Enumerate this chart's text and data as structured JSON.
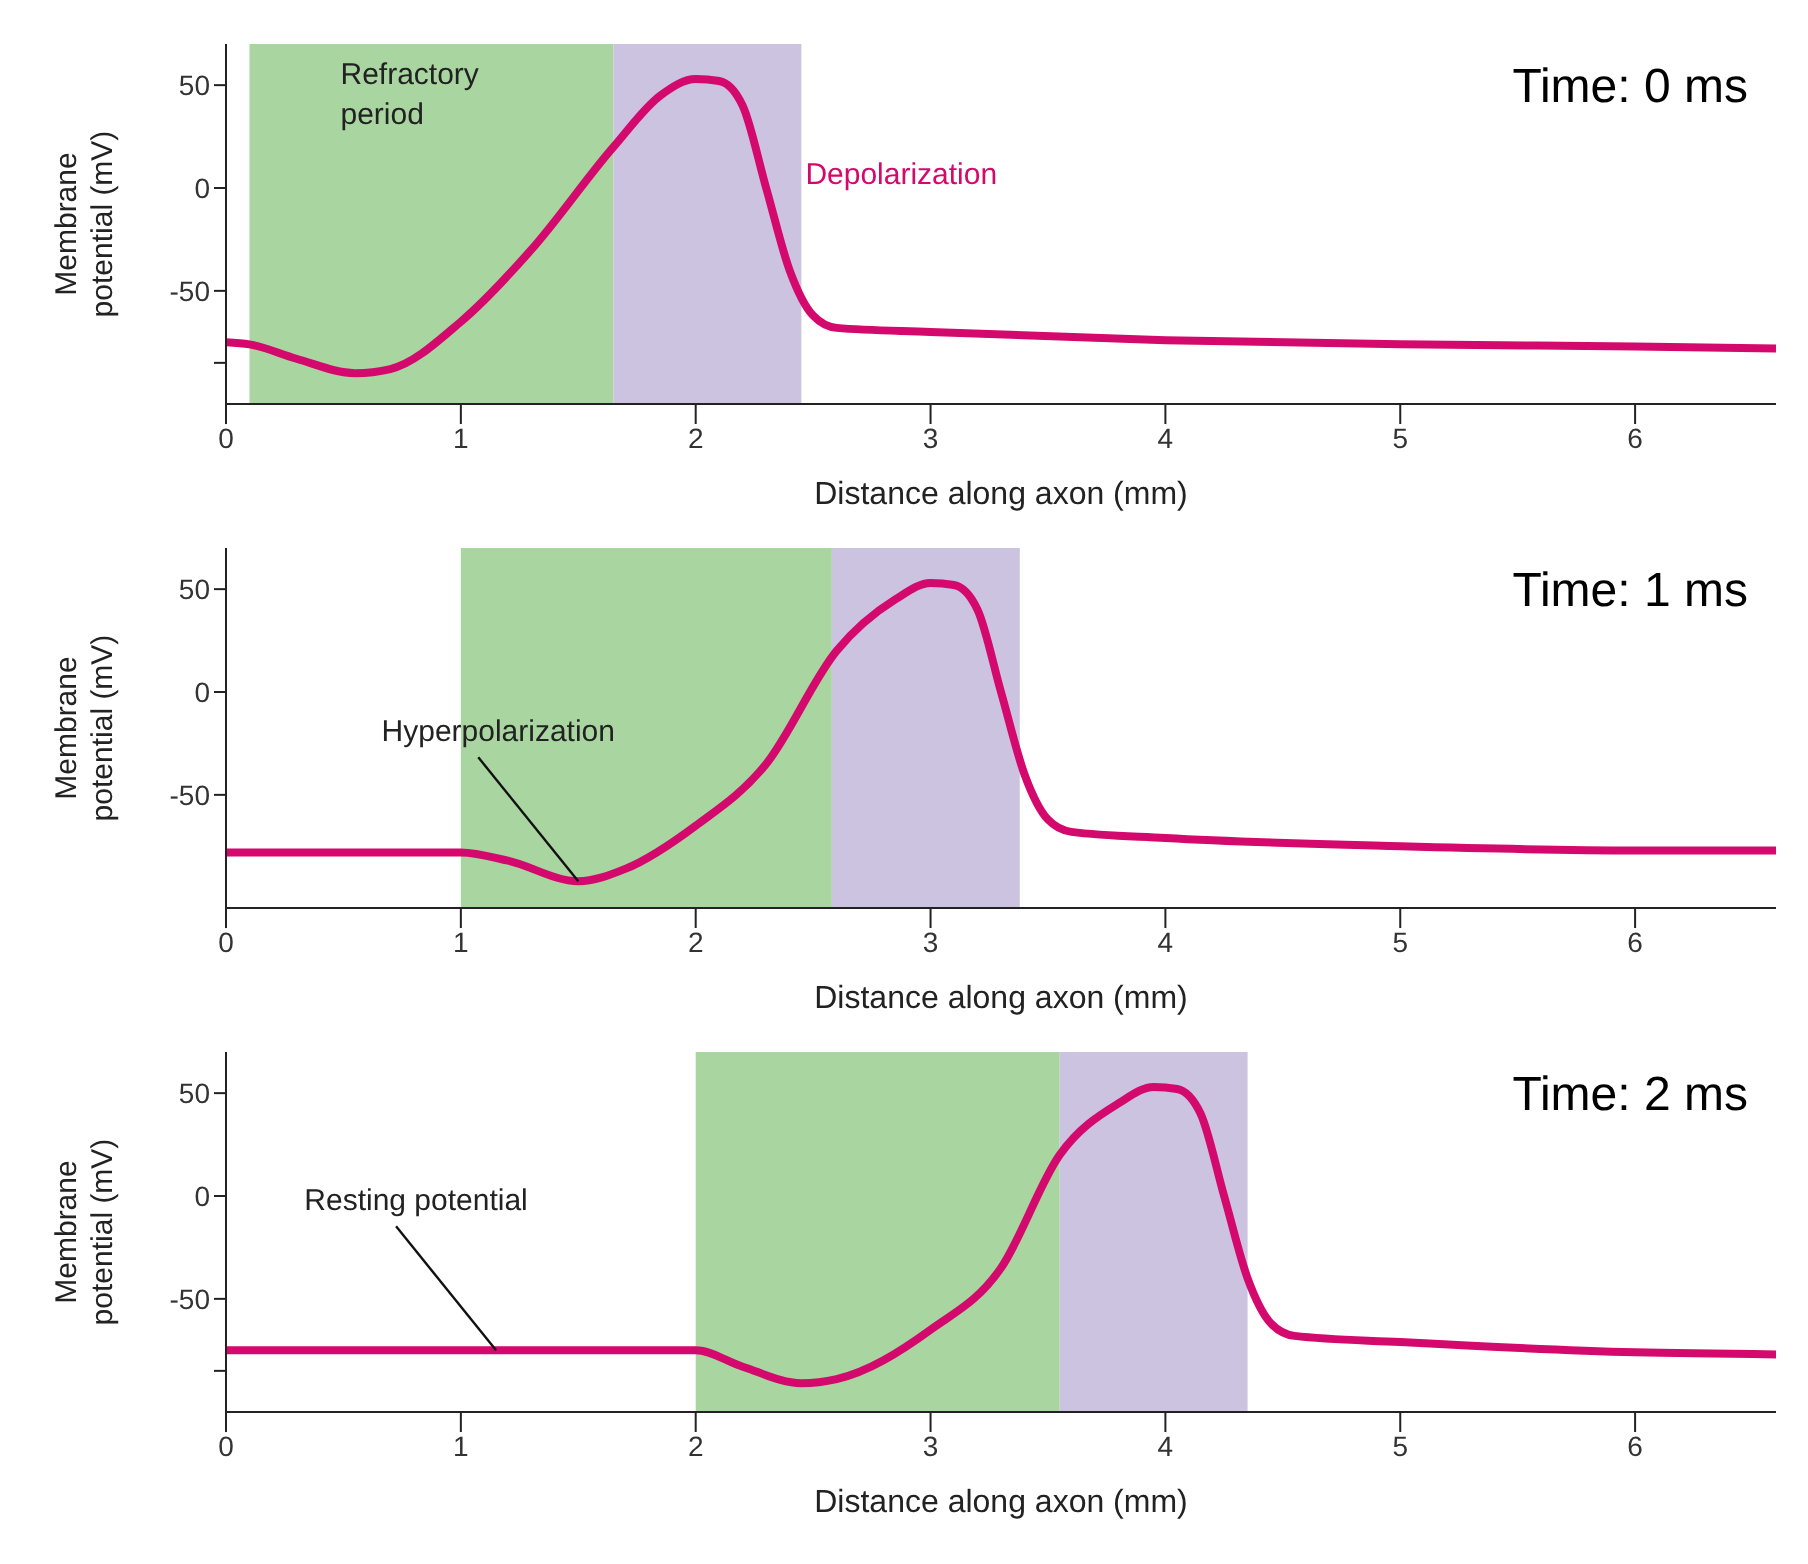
{
  "chart_data": [
    {
      "type": "line",
      "xlabel": "Distance along axon (mm)",
      "ylabel": "Membrane potential (mV)",
      "xlim": [
        0,
        6.6
      ],
      "xticks": [
        0,
        1,
        2,
        3,
        4,
        5,
        6
      ],
      "ylim": [
        -105,
        70
      ],
      "yticks": [
        {
          "value": -85,
          "label": null
        },
        -50,
        0,
        50
      ],
      "x": [
        0,
        0.1,
        0.3,
        0.55,
        0.7,
        1.0,
        1.3,
        1.65,
        1.85,
        2.0,
        2.1,
        2.2,
        2.3,
        2.4,
        2.5,
        2.6,
        3,
        4,
        5,
        6,
        6.6
      ],
      "series": [
        {
          "color": "#d4096e",
          "values": [
            -75,
            -76,
            -83,
            -90,
            -88,
            -65,
            -30,
            20,
            45,
            53,
            52,
            40,
            0,
            -40,
            -62,
            -68,
            -70,
            -74,
            -76,
            -77,
            -78
          ]
        }
      ],
      "bands": [
        {
          "axis": "x",
          "from": 0.1,
          "to": 1.65,
          "label": "Refractory period",
          "color": "#a9d6a0"
        },
        {
          "axis": "x",
          "from": 1.65,
          "to": 2.45,
          "label": "Depolarization",
          "color": "#cbc3e0"
        }
      ],
      "annotations": [
        "Time: 0 ms"
      ]
    },
    {
      "type": "line",
      "xlabel": "Distance along axon (mm)",
      "ylabel": "Membrane potential (mV)",
      "xlim": [
        0,
        6.6
      ],
      "xticks": [
        0,
        1,
        2,
        3,
        4,
        5,
        6
      ],
      "ylim": [
        -105,
        70
      ],
      "yticks": [
        -50,
        0,
        50
      ],
      "x": [
        0,
        1.0,
        1.2,
        1.5,
        1.7,
        2.0,
        2.3,
        2.6,
        2.85,
        3.0,
        3.1,
        3.2,
        3.3,
        3.4,
        3.5,
        3.6,
        4,
        5,
        6,
        6.6
      ],
      "series": [
        {
          "color": "#d4096e",
          "values": [
            -78,
            -78,
            -82,
            -92,
            -86,
            -65,
            -35,
            20,
            45,
            53,
            52,
            40,
            0,
            -40,
            -62,
            -68,
            -71,
            -75,
            -77,
            -77
          ]
        }
      ],
      "bands": [
        {
          "axis": "x",
          "from": 1.0,
          "to": 2.58,
          "color": "#a9d6a0"
        },
        {
          "axis": "x",
          "from": 2.58,
          "to": 3.38,
          "color": "#cbc3e0"
        }
      ],
      "annotations": [
        "Time: 1 ms",
        {
          "text": "Hyperpolarization",
          "x": 1.5,
          "y": -92
        }
      ]
    },
    {
      "type": "line",
      "xlabel": "Distance along axon (mm)",
      "ylabel": "Membrane potential (mV)",
      "xlim": [
        0,
        6.6
      ],
      "xticks": [
        0,
        1,
        2,
        3,
        4,
        5,
        6
      ],
      "ylim": [
        -105,
        70
      ],
      "yticks": [
        {
          "value": -85,
          "label": null
        },
        -50,
        0,
        50
      ],
      "x": [
        0,
        2.0,
        2.2,
        2.45,
        2.6,
        3.0,
        3.3,
        3.55,
        3.8,
        3.95,
        4.05,
        4.15,
        4.25,
        4.35,
        4.45,
        4.55,
        5,
        6,
        6.6
      ],
      "series": [
        {
          "color": "#d4096e",
          "values": [
            -75,
            -75,
            -83,
            -91,
            -89,
            -65,
            -35,
            20,
            45,
            53,
            52,
            40,
            0,
            -40,
            -62,
            -68,
            -71,
            -76,
            -77
          ]
        }
      ],
      "bands": [
        {
          "axis": "x",
          "from": 2.0,
          "to": 3.55,
          "color": "#a9d6a0"
        },
        {
          "axis": "x",
          "from": 3.55,
          "to": 4.35,
          "color": "#cbc3e0"
        }
      ],
      "annotations": [
        "Time: 2 ms",
        {
          "text": "Resting potential",
          "x": 1.15,
          "y": -75
        }
      ]
    }
  ]
}
